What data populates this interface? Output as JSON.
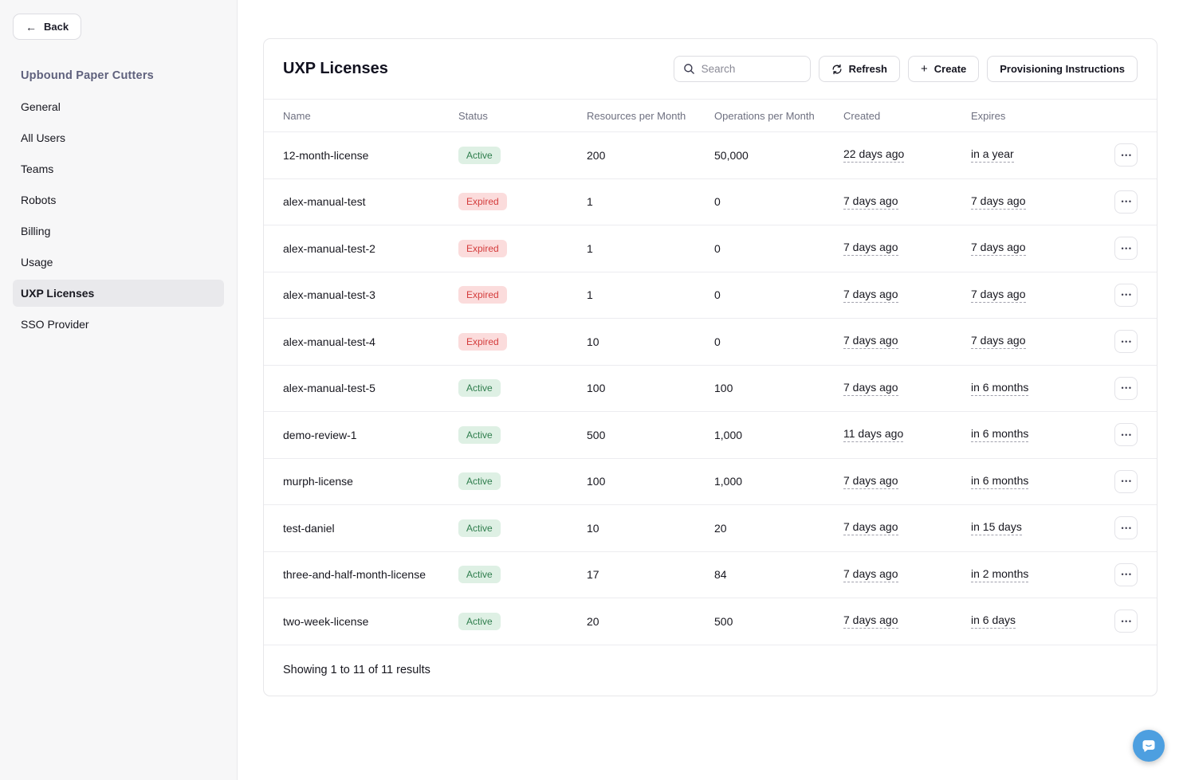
{
  "sidebar": {
    "back_label": "Back",
    "org_title": "Upbound Paper Cutters",
    "items": [
      {
        "label": "General",
        "active": false
      },
      {
        "label": "All Users",
        "active": false
      },
      {
        "label": "Teams",
        "active": false
      },
      {
        "label": "Robots",
        "active": false
      },
      {
        "label": "Billing",
        "active": false
      },
      {
        "label": "Usage",
        "active": false
      },
      {
        "label": "UXP Licenses",
        "active": true
      },
      {
        "label": "SSO Provider",
        "active": false
      }
    ]
  },
  "main": {
    "title": "UXP Licenses",
    "search_placeholder": "Search",
    "refresh_label": "Refresh",
    "create_label": "Create",
    "provisioning_label": "Provisioning Instructions",
    "table": {
      "columns": [
        "Name",
        "Status",
        "Resources per Month",
        "Operations per Month",
        "Created",
        "Expires"
      ],
      "rows": [
        {
          "name": "12-month-license",
          "status": "Active",
          "resources": "200",
          "operations": "50,000",
          "created": "22 days ago",
          "expires": "in a year"
        },
        {
          "name": "alex-manual-test",
          "status": "Expired",
          "resources": "1",
          "operations": "0",
          "created": "7 days ago",
          "expires": "7 days ago"
        },
        {
          "name": "alex-manual-test-2",
          "status": "Expired",
          "resources": "1",
          "operations": "0",
          "created": "7 days ago",
          "expires": "7 days ago"
        },
        {
          "name": "alex-manual-test-3",
          "status": "Expired",
          "resources": "1",
          "operations": "0",
          "created": "7 days ago",
          "expires": "7 days ago"
        },
        {
          "name": "alex-manual-test-4",
          "status": "Expired",
          "resources": "10",
          "operations": "0",
          "created": "7 days ago",
          "expires": "7 days ago"
        },
        {
          "name": "alex-manual-test-5",
          "status": "Active",
          "resources": "100",
          "operations": "100",
          "created": "7 days ago",
          "expires": "in 6 months"
        },
        {
          "name": "demo-review-1",
          "status": "Active",
          "resources": "500",
          "operations": "1,000",
          "created": "11 days ago",
          "expires": "in 6 months"
        },
        {
          "name": "murph-license",
          "status": "Active",
          "resources": "100",
          "operations": "1,000",
          "created": "7 days ago",
          "expires": "in 6 months"
        },
        {
          "name": "test-daniel",
          "status": "Active",
          "resources": "10",
          "operations": "20",
          "created": "7 days ago",
          "expires": "in 15 days"
        },
        {
          "name": "three-and-half-month-license",
          "status": "Active",
          "resources": "17",
          "operations": "84",
          "created": "7 days ago",
          "expires": "in 2 months"
        },
        {
          "name": "two-week-license",
          "status": "Active",
          "resources": "20",
          "operations": "500",
          "created": "7 days ago",
          "expires": "in 6 days"
        }
      ],
      "footer": "Showing 1 to 11 of 11 results"
    }
  },
  "icons": {
    "back_arrow": "←",
    "search": "magnifier",
    "refresh": "circular-arrows",
    "create_plus": "+",
    "row_menu": "•••",
    "chat": "speech-bubble-smile"
  },
  "colors": {
    "active_badge_bg": "#def0e4",
    "active_badge_text": "#2e7d4c",
    "expired_badge_bg": "#fbdcdc",
    "expired_badge_text": "#d43c3c",
    "sidebar_bg": "#f7f7f8",
    "selected_item_bg": "#e9e9ec",
    "org_title_color": "#5f617d",
    "chat_button": "#4d9fe0"
  }
}
